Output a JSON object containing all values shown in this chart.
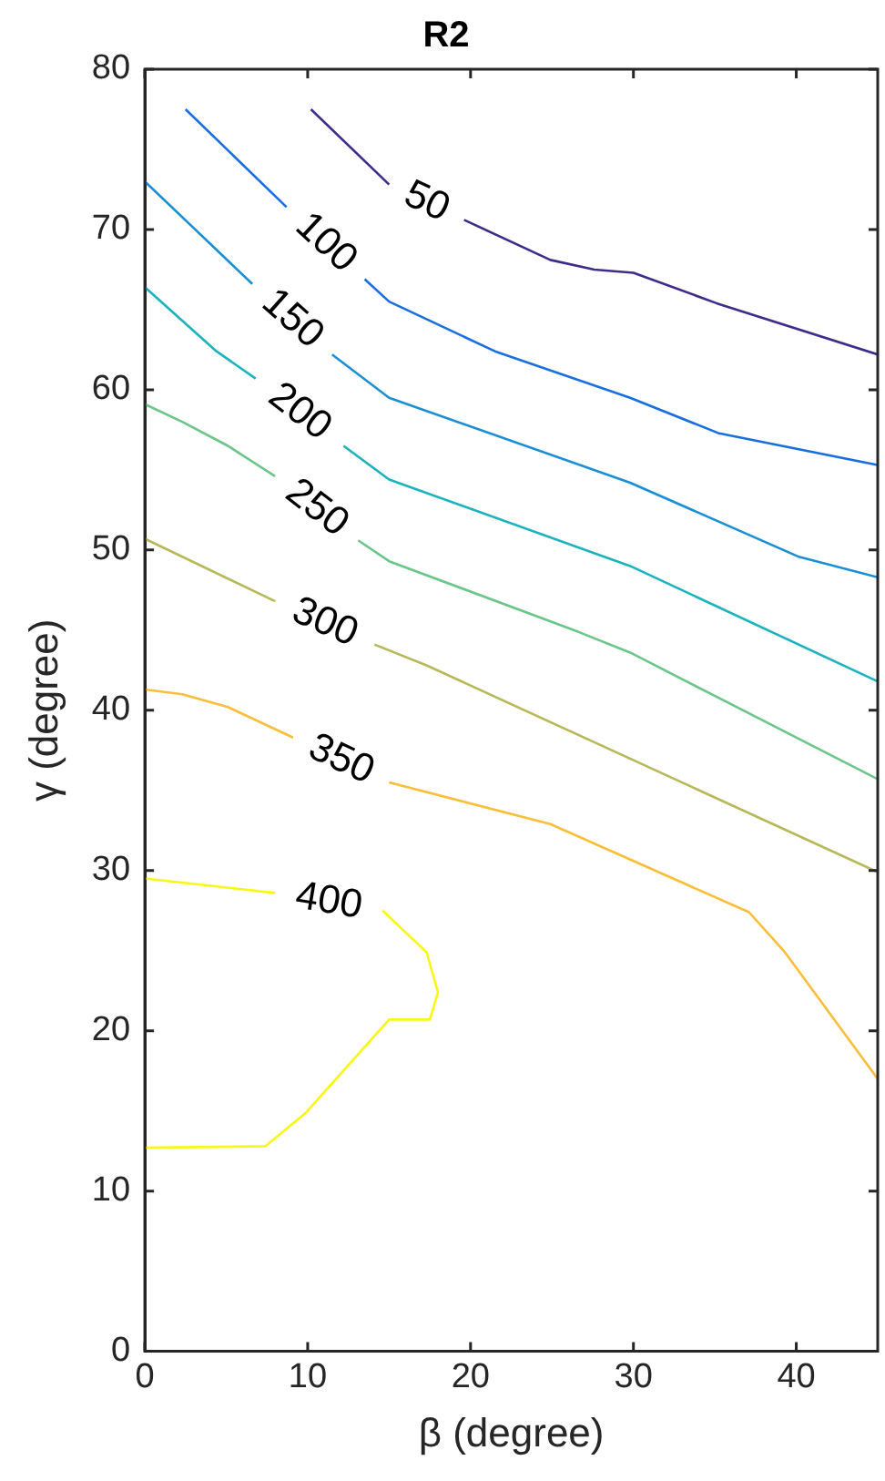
{
  "chart_data": {
    "type": "line",
    "title": "R2",
    "xlabel": "β (degree)",
    "ylabel": "γ (degree)",
    "xlim": [
      0,
      45
    ],
    "ylim": [
      0,
      80
    ],
    "xticks": [
      0,
      10,
      20,
      30,
      40
    ],
    "yticks": [
      0,
      10,
      20,
      30,
      40,
      50,
      60,
      70,
      80
    ],
    "grid": false,
    "legend": false,
    "marker": "none",
    "line_style": "solid",
    "series": [
      {
        "name": "50",
        "color": "#3e2b8a",
        "x": [
          10.2,
          15.0,
          17.3,
          19.6,
          24.9,
          27.6,
          30.0,
          35.1,
          45
        ],
        "values": [
          77.5,
          72.8,
          null,
          70.6,
          68.1,
          67.5,
          67.3,
          65.4,
          62.2
        ]
      },
      {
        "name": "100",
        "color": "#1a6fe0",
        "x": [
          2.5,
          8.7,
          11.1,
          13.5,
          15.0,
          21.5,
          29.8,
          35.2,
          45
        ],
        "values": [
          77.5,
          71.4,
          null,
          66.9,
          65.5,
          62.4,
          59.5,
          57.3,
          55.3
        ]
      },
      {
        "name": "150",
        "color": "#1a8fd6",
        "x": [
          0,
          6.6,
          9.0,
          11.5,
          15.0,
          29.8,
          40.1,
          45
        ],
        "values": [
          73.0,
          66.6,
          null,
          62.2,
          59.5,
          54.2,
          49.6,
          48.3
        ]
      },
      {
        "name": "200",
        "color": "#1cb3be",
        "x": [
          0,
          4.4,
          6.8,
          9.5,
          12.2,
          15.0,
          29.8,
          45
        ],
        "values": [
          66.4,
          62.4,
          60.7,
          null,
          56.5,
          54.4,
          49.0,
          41.8
        ]
      },
      {
        "name": "250",
        "color": "#6cc58a",
        "x": [
          0,
          2.3,
          5.1,
          8.0,
          10.5,
          13.1,
          15.0,
          26.6,
          29.8,
          45
        ],
        "values": [
          59.1,
          58.0,
          56.5,
          54.6,
          null,
          50.6,
          49.3,
          44.9,
          43.6,
          35.7
        ]
      },
      {
        "name": "300",
        "color": "#b8b85a",
        "x": [
          0,
          8.0,
          11.0,
          14.1,
          17.3,
          45
        ],
        "values": [
          50.7,
          46.8,
          null,
          44.1,
          42.8,
          29.9
        ]
      },
      {
        "name": "350",
        "color": "#f9be3a",
        "x": [
          0,
          2.3,
          5.1,
          9.1,
          12.0,
          15.0,
          24.9,
          37.1,
          39.3,
          45
        ],
        "values": [
          41.3,
          41.0,
          40.2,
          38.3,
          null,
          35.5,
          32.9,
          27.4,
          24.9,
          17.0
        ]
      },
      {
        "name": "400",
        "color": "#f8f814",
        "x": [
          0,
          8.0,
          11.3,
          14.6,
          17.3,
          18.0,
          17.5,
          15.0,
          9.9,
          7.4,
          0
        ],
        "values": [
          29.5,
          28.6,
          null,
          27.5,
          24.9,
          22.4,
          20.7,
          20.7,
          14.9,
          12.8,
          12.7
        ]
      }
    ]
  }
}
